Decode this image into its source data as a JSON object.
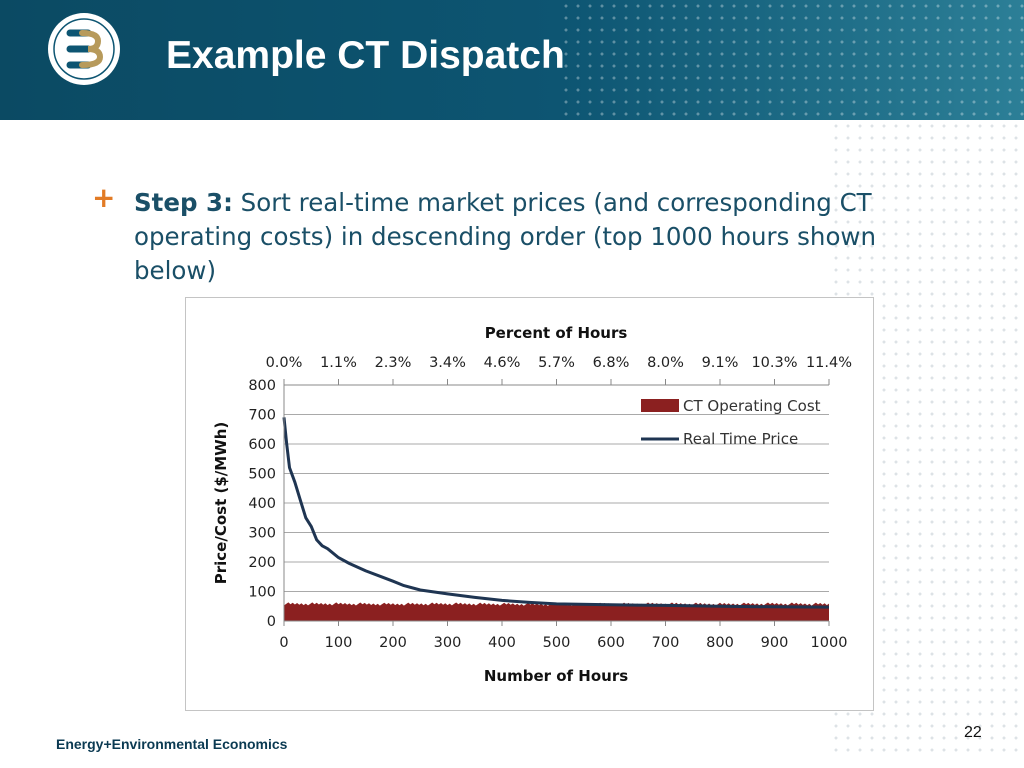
{
  "slide": {
    "title": "Example CT Dispatch",
    "page_number": "22",
    "footer_text": "Energy+Environmental Economics"
  },
  "bullet": {
    "icon": "plus-icon",
    "marker": "+",
    "lead": "Step 3:",
    "text": " Sort real-time market prices (and corresponding CT operating costs) in descending order (top 1000 hours shown below)"
  },
  "colors": {
    "header": "#0d5572",
    "accent": "#e27b25",
    "price_line": "#1f3552",
    "cost_fill": "#8b2020",
    "logo_gold": "#b79a5b"
  },
  "chart_data": {
    "type": "line",
    "title": "",
    "xlabel": "Number of Hours",
    "ylabel": "Price/Cost ($/MWh)",
    "x2label": "Percent of Hours",
    "xlim": [
      0,
      1000
    ],
    "ylim": [
      0,
      800
    ],
    "x_ticks": [
      0,
      100,
      200,
      300,
      400,
      500,
      600,
      700,
      800,
      900,
      1000
    ],
    "y_ticks": [
      0,
      100,
      200,
      300,
      400,
      500,
      600,
      700,
      800
    ],
    "x2_ticks": [
      "0.0%",
      "1.1%",
      "2.3%",
      "3.4%",
      "4.6%",
      "5.7%",
      "6.8%",
      "8.0%",
      "9.1%",
      "10.3%",
      "11.4%"
    ],
    "grid": true,
    "legend_position": "top-right",
    "series": [
      {
        "name": "CT Operating Cost",
        "kind": "area",
        "x": [
          0,
          100,
          200,
          300,
          400,
          500,
          600,
          700,
          800,
          900,
          1000
        ],
        "y": [
          58,
          58,
          57,
          58,
          57,
          56,
          57,
          58,
          57,
          58,
          57
        ]
      },
      {
        "name": "Real Time Price",
        "kind": "line",
        "x": [
          0,
          5,
          10,
          20,
          30,
          40,
          50,
          60,
          70,
          80,
          100,
          120,
          150,
          200,
          220,
          250,
          300,
          350,
          400,
          450,
          500,
          600,
          700,
          800,
          900,
          1000
        ],
        "y": [
          690,
          600,
          520,
          470,
          410,
          350,
          320,
          275,
          255,
          245,
          215,
          195,
          170,
          135,
          120,
          105,
          92,
          80,
          70,
          63,
          58,
          55,
          53,
          50,
          48,
          47
        ]
      }
    ]
  }
}
